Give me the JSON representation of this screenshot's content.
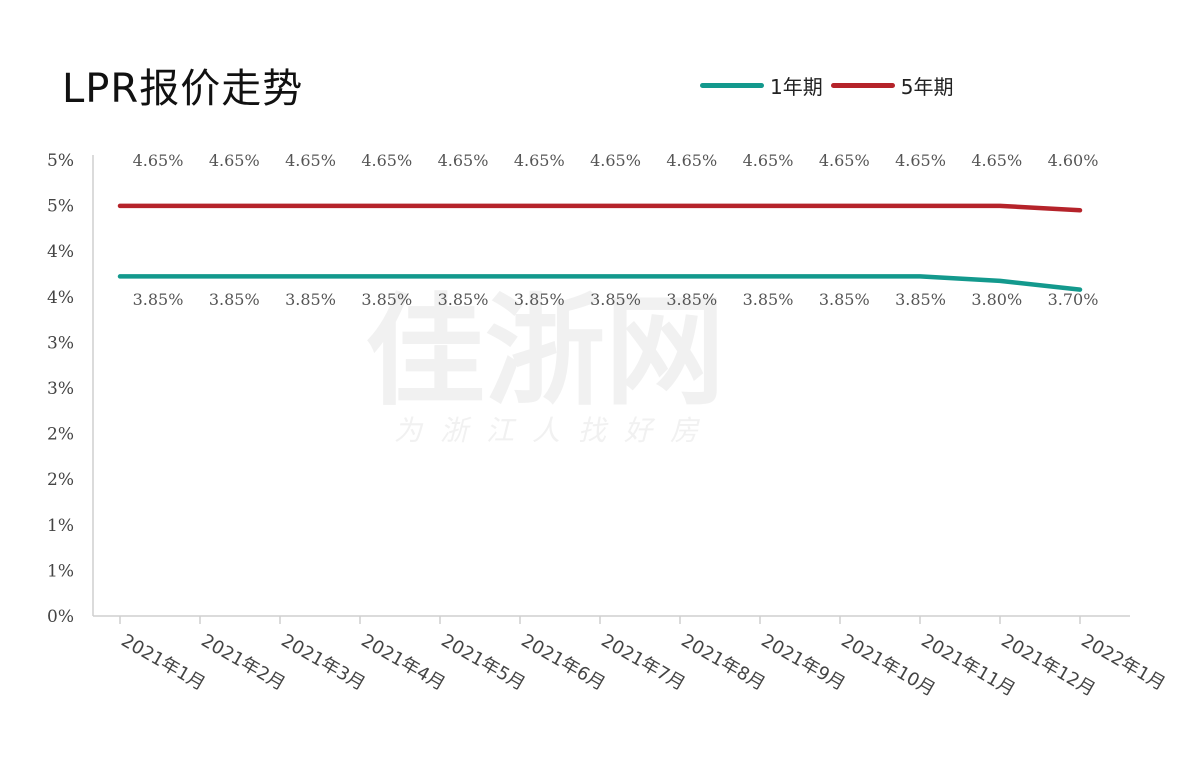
{
  "chart_data": {
    "type": "line",
    "title": "LPR报价走势",
    "categories": [
      "2021年1月",
      "2021年2月",
      "2021年3月",
      "2021年4月",
      "2021年5月",
      "2021年6月",
      "2021年7月",
      "2021年8月",
      "2021年9月",
      "2021年10月",
      "2021年11月",
      "2021年12月",
      "2022年1月"
    ],
    "y_tick_labels": [
      "0%",
      "1%",
      "1%",
      "2%",
      "2%",
      "3%",
      "3%",
      "4%",
      "4%",
      "5%",
      "5%"
    ],
    "ylim": [
      0,
      5
    ],
    "grid": false,
    "legend_position": "top-right",
    "series": [
      {
        "name": "1年期",
        "color": "#13998d",
        "values": [
          3.85,
          3.85,
          3.85,
          3.85,
          3.85,
          3.85,
          3.85,
          3.85,
          3.85,
          3.85,
          3.85,
          3.8,
          3.7
        ],
        "labels": [
          "3.85%",
          "3.85%",
          "3.85%",
          "3.85%",
          "3.85%",
          "3.85%",
          "3.85%",
          "3.85%",
          "3.85%",
          "3.85%",
          "3.85%",
          "3.80%",
          "3.70%"
        ]
      },
      {
        "name": "5年期",
        "color": "#b5232a",
        "values": [
          4.65,
          4.65,
          4.65,
          4.65,
          4.65,
          4.65,
          4.65,
          4.65,
          4.65,
          4.65,
          4.65,
          4.65,
          4.6
        ],
        "labels": [
          "4.65%",
          "4.65%",
          "4.65%",
          "4.65%",
          "4.65%",
          "4.65%",
          "4.65%",
          "4.65%",
          "4.65%",
          "4.65%",
          "4.65%",
          "4.65%",
          "4.60%"
        ]
      }
    ]
  },
  "watermark": {
    "main": "佳浙网",
    "sub": "为浙江人找好房"
  }
}
